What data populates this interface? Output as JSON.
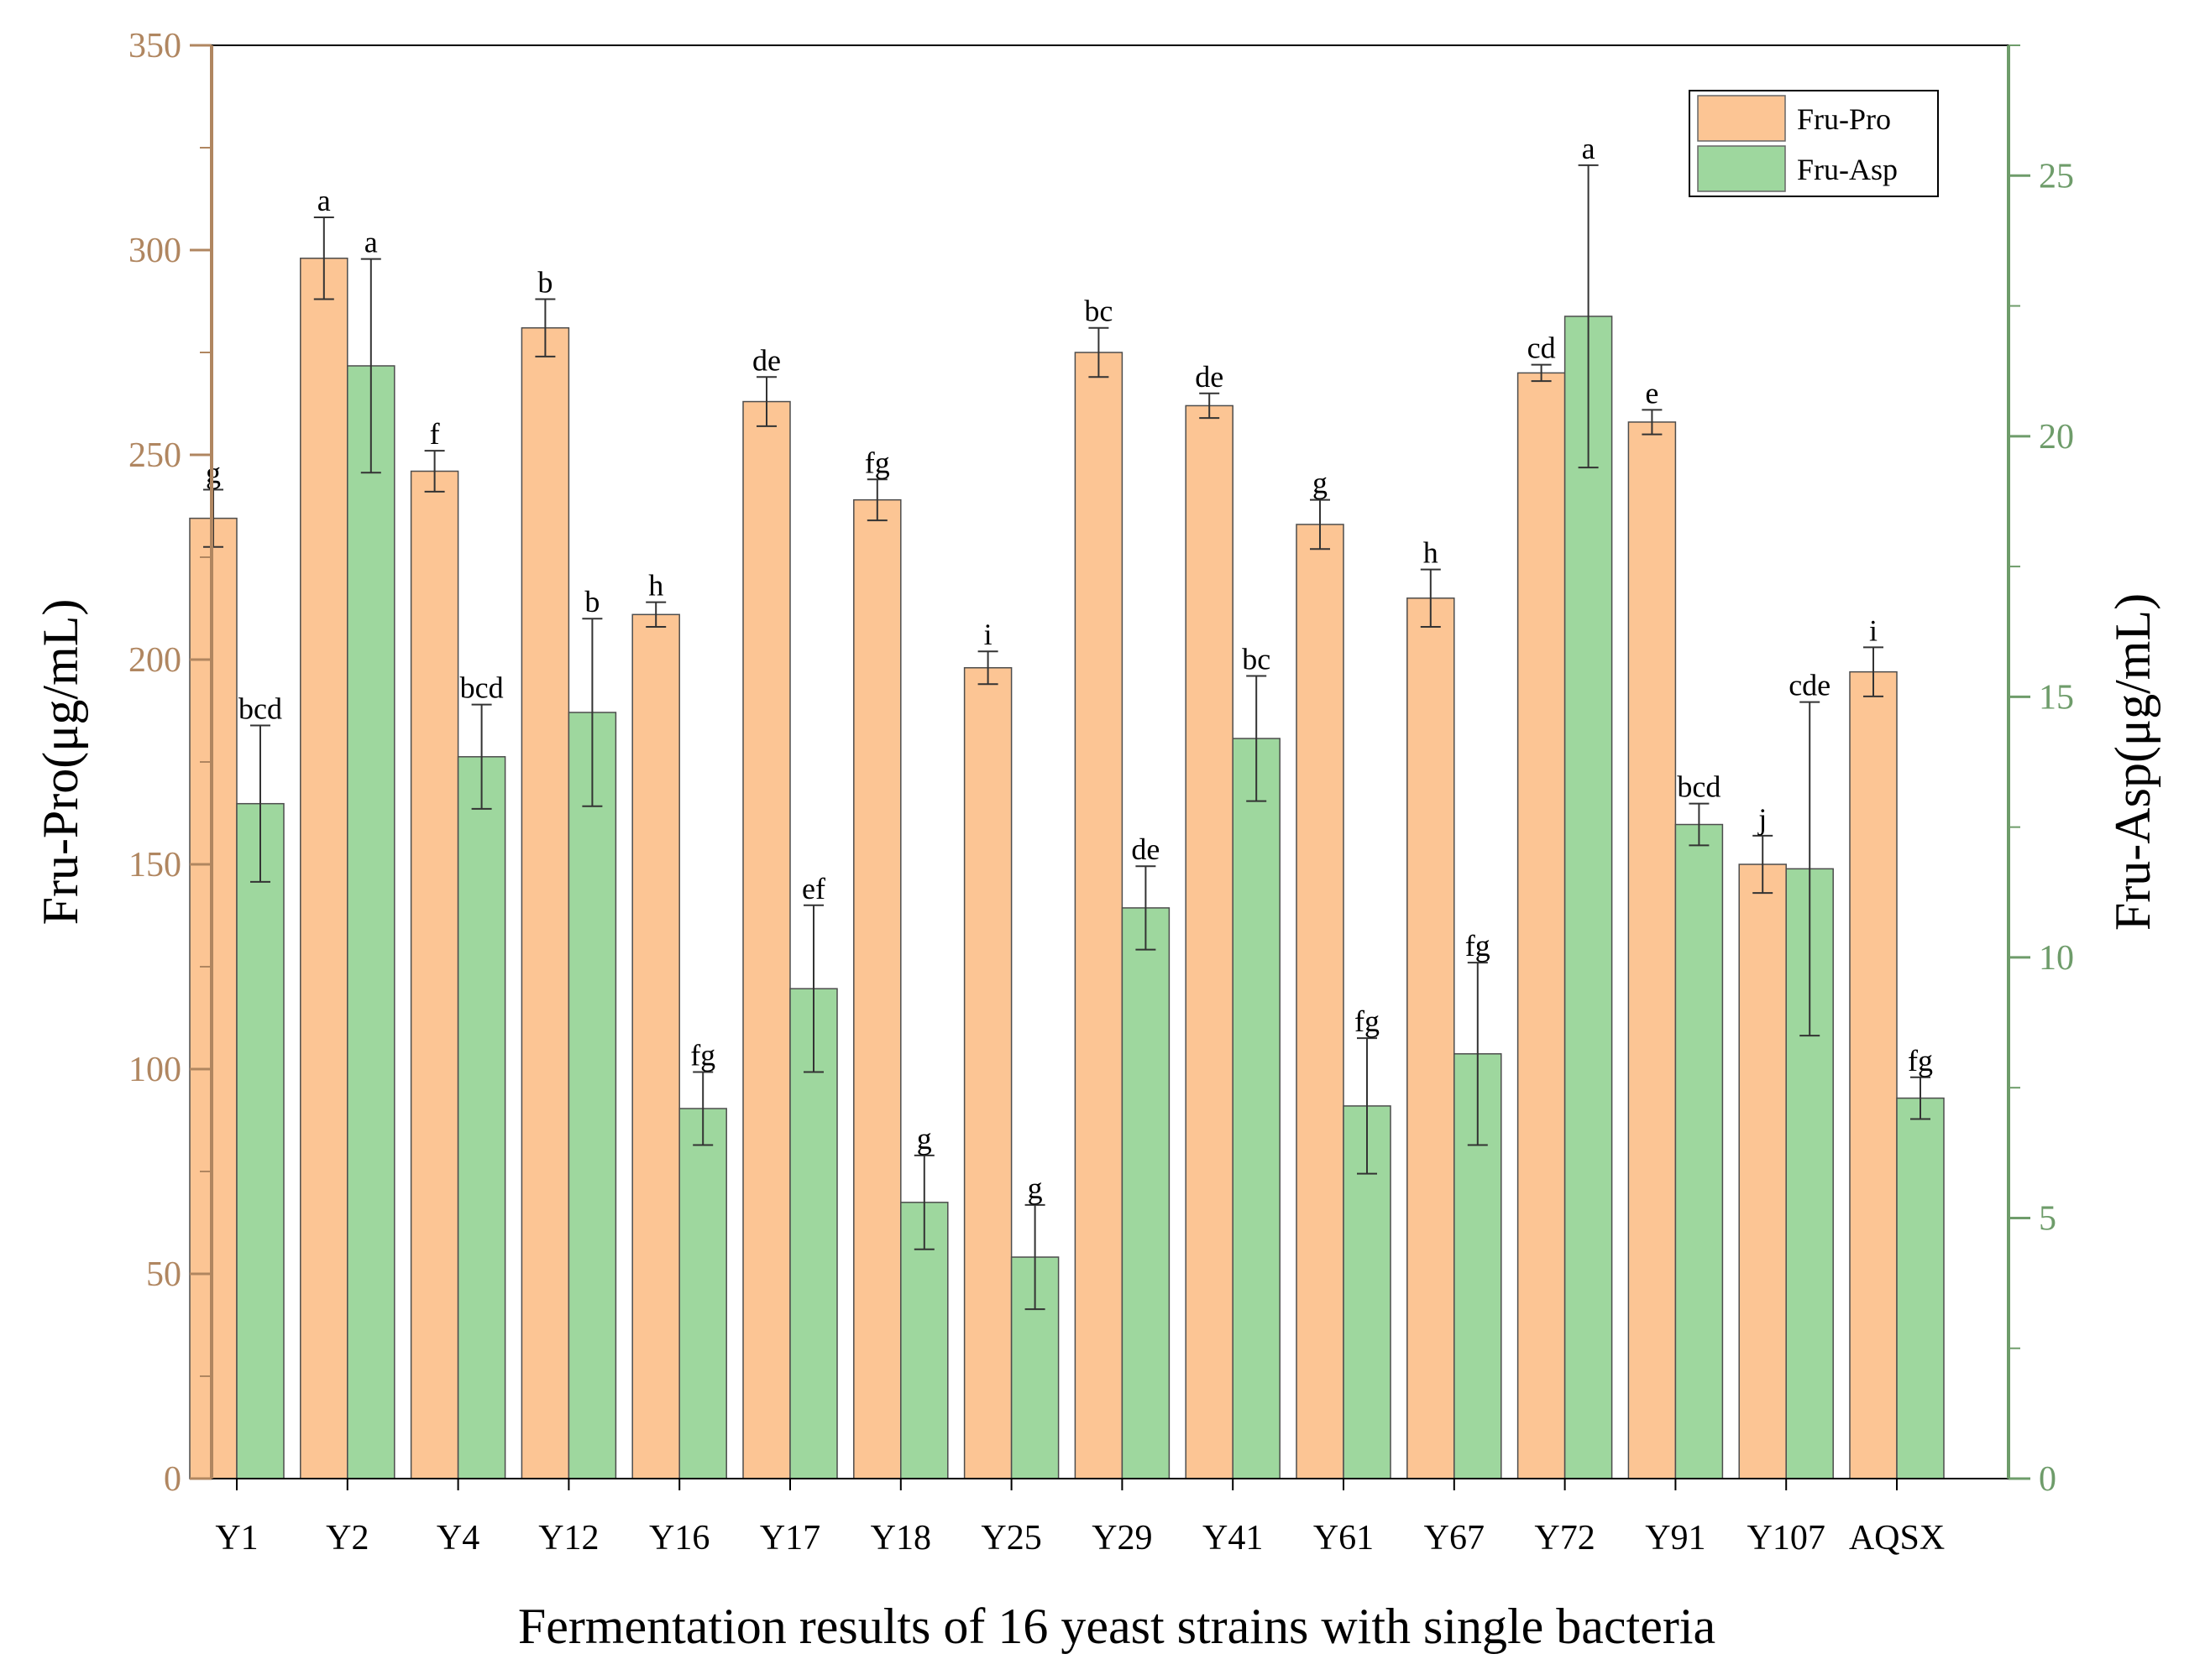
{
  "chart_data": {
    "type": "bar",
    "xlabel": "Fermentation results of 16 yeast strains with single bacteria",
    "ylabel_left": "Fru-Pro(μg/mL)",
    "ylabel_right": "Fru-Asp(μg/mL)",
    "ylim_left": [
      0,
      350
    ],
    "ylim_right": [
      0,
      27.5
    ],
    "yticks_left": [
      "0",
      "50",
      "100",
      "150",
      "200",
      "250",
      "300",
      "350"
    ],
    "yticks_right": [
      "0",
      "5",
      "10",
      "15",
      "20",
      "25"
    ],
    "categories": [
      "Y1",
      "Y2",
      "Y4",
      "Y12",
      "Y16",
      "Y17",
      "Y18",
      "Y25",
      "Y29",
      "Y41",
      "Y61",
      "Y67",
      "Y72",
      "Y91",
      "Y107",
      "AQSX"
    ],
    "legend_position": "top-right",
    "series": [
      {
        "name": "Fru-Pro",
        "axis": "left",
        "color": "#FCC594",
        "values": [
          234.5,
          298,
          246,
          281,
          211,
          263,
          239,
          198,
          275,
          262,
          233,
          215,
          270,
          258,
          150,
          197
        ],
        "errors": [
          7,
          10,
          5,
          7,
          3,
          6,
          5,
          4,
          6,
          3,
          6,
          7,
          2,
          3,
          7,
          6
        ],
        "letters": [
          "g",
          "a",
          "f",
          "b",
          "h",
          "de",
          "fg",
          "i",
          "bc",
          "de",
          "g",
          "h",
          "cd",
          "e",
          "j",
          "i"
        ]
      },
      {
        "name": "Fru-Asp",
        "axis": "right",
        "color": "#9ED79E",
        "values": [
          12.95,
          21.35,
          13.85,
          14.7,
          7.1,
          9.4,
          5.3,
          4.25,
          10.95,
          14.2,
          7.15,
          8.15,
          22.3,
          12.55,
          11.7,
          7.3
        ],
        "errors": [
          1.5,
          2.05,
          1.0,
          1.8,
          0.7,
          1.6,
          0.9,
          1.0,
          0.8,
          1.2,
          1.3,
          1.75,
          2.9,
          0.4,
          3.2,
          0.4
        ],
        "letters": [
          "bcd",
          "a",
          "bcd",
          "b",
          "fg",
          "ef",
          "g",
          "g",
          "de",
          "bc",
          "fg",
          "fg",
          "a",
          "bcd",
          "cde",
          "fg"
        ]
      }
    ]
  }
}
